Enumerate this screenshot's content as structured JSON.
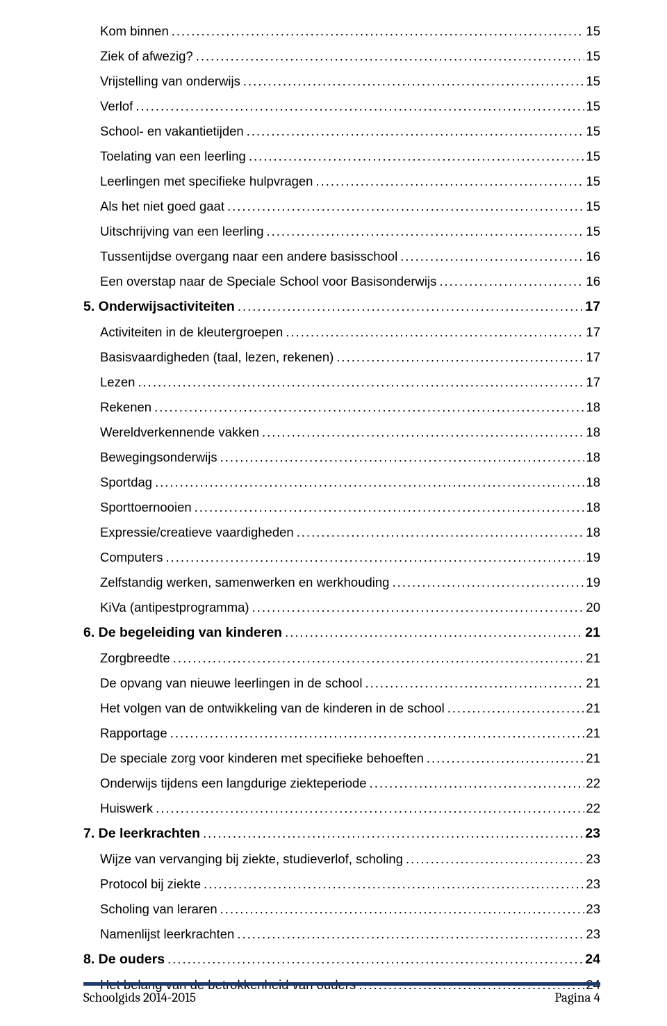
{
  "toc": [
    {
      "level": 2,
      "label": "Kom binnen",
      "page": "15",
      "bold": false
    },
    {
      "level": 2,
      "label": "Ziek of afwezig?",
      "page": "15",
      "bold": false
    },
    {
      "level": 2,
      "label": "Vrijstelling van onderwijs",
      "page": "15",
      "bold": false
    },
    {
      "level": 2,
      "label": "Verlof",
      "page": "15",
      "bold": false
    },
    {
      "level": 2,
      "label": "School- en vakantietijden",
      "page": "15",
      "bold": false
    },
    {
      "level": 2,
      "label": "Toelating van een leerling",
      "page": "15",
      "bold": false
    },
    {
      "level": 2,
      "label": "Leerlingen met specifieke hulpvragen",
      "page": "15",
      "bold": false
    },
    {
      "level": 2,
      "label": "Als het niet goed gaat",
      "page": "15",
      "bold": false
    },
    {
      "level": 2,
      "label": "Uitschrijving van een leerling",
      "page": "15",
      "bold": false
    },
    {
      "level": 2,
      "label": "Tussentijdse overgang naar een andere basisschool",
      "page": "16",
      "bold": false
    },
    {
      "level": 2,
      "label": "Een overstap naar de Speciale School voor Basisonderwijs",
      "page": "16",
      "bold": false
    },
    {
      "level": 1,
      "label": "5. Onderwijsactiviteiten",
      "page": "17",
      "bold": true
    },
    {
      "level": 2,
      "label": "Activiteiten in de kleutergroepen",
      "page": "17",
      "bold": false
    },
    {
      "level": 2,
      "label": "Basisvaardigheden (taal, lezen, rekenen)",
      "page": "17",
      "bold": false
    },
    {
      "level": 2,
      "label": "Lezen",
      "page": "17",
      "bold": false
    },
    {
      "level": 2,
      "label": "Rekenen",
      "page": "18",
      "bold": false
    },
    {
      "level": 2,
      "label": "Wereldverkennende vakken",
      "page": "18",
      "bold": false
    },
    {
      "level": 2,
      "label": "Bewegingsonderwijs",
      "page": "18",
      "bold": false
    },
    {
      "level": 2,
      "label": "Sportdag",
      "page": "18",
      "bold": false
    },
    {
      "level": 2,
      "label": "Sporttoernooien",
      "page": "18",
      "bold": false
    },
    {
      "level": 2,
      "label": "Expressie/creatieve vaardigheden",
      "page": "18",
      "bold": false
    },
    {
      "level": 2,
      "label": "Computers",
      "page": "19",
      "bold": false
    },
    {
      "level": 2,
      "label": "Zelfstandig werken, samenwerken en werkhouding",
      "page": "19",
      "bold": false
    },
    {
      "level": 2,
      "label": "KiVa (antipestprogramma)",
      "page": "20",
      "bold": false
    },
    {
      "level": 1,
      "label": "6. De begeleiding van kinderen",
      "page": "21",
      "bold": true
    },
    {
      "level": 2,
      "label": "Zorgbreedte",
      "page": "21",
      "bold": false
    },
    {
      "level": 2,
      "label": "De opvang van nieuwe leerlingen in de school",
      "page": "21",
      "bold": false
    },
    {
      "level": 2,
      "label": "Het volgen van de ontwikkeling van de kinderen in de school",
      "page": "21",
      "bold": false
    },
    {
      "level": 2,
      "label": "Rapportage",
      "page": "21",
      "bold": false
    },
    {
      "level": 2,
      "label": "De speciale zorg voor kinderen met specifieke behoeften",
      "page": "21",
      "bold": false
    },
    {
      "level": 2,
      "label": "Onderwijs tijdens een langdurige ziekteperiode",
      "page": "22",
      "bold": false
    },
    {
      "level": 2,
      "label": "Huiswerk",
      "page": "22",
      "bold": false
    },
    {
      "level": 1,
      "label": "7. De leerkrachten",
      "page": "23",
      "bold": true
    },
    {
      "level": 2,
      "label": "Wijze van vervanging bij ziekte, studieverlof, scholing",
      "page": "23",
      "bold": false
    },
    {
      "level": 2,
      "label": "Protocol bij ziekte",
      "page": "23",
      "bold": false
    },
    {
      "level": 2,
      "label": "Scholing van leraren",
      "page": "23",
      "bold": false
    },
    {
      "level": 2,
      "label": "Namenlijst leerkrachten",
      "page": "23",
      "bold": false
    },
    {
      "level": 1,
      "label": "8. De ouders",
      "page": "24",
      "bold": true
    },
    {
      "level": 2,
      "label": "Het belang van de betrokkenheid van ouders",
      "page": "24",
      "bold": false
    }
  ],
  "footer": {
    "left": "Schoolgids 2014-2015",
    "right": "Pagina 4",
    "rule_color": "#1f3a6e"
  }
}
